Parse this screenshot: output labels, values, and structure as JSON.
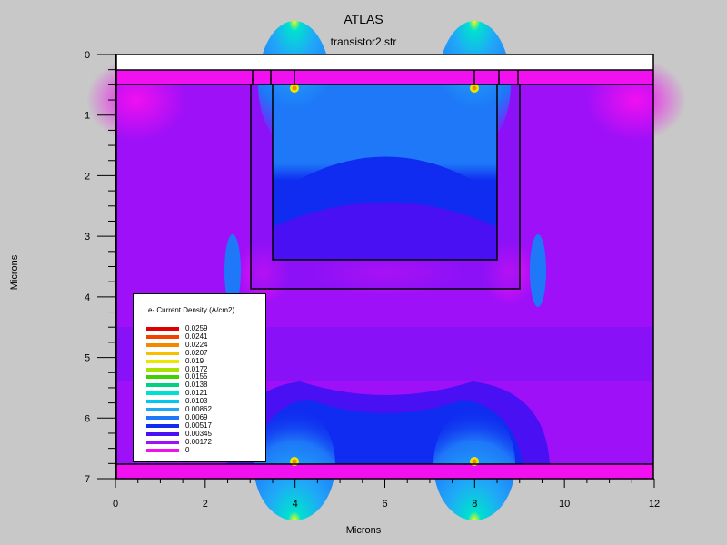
{
  "header": {
    "title": "ATLAS",
    "subtitle": "transistor2.str"
  },
  "chart_data": {
    "type": "heatmap",
    "title": "ATLAS",
    "subtitle": "transistor2.str",
    "xlabel": "Microns",
    "ylabel": "Microns",
    "xlim": [
      0,
      12
    ],
    "ylim": [
      7,
      0
    ],
    "x_ticks": [
      "0",
      "2",
      "4",
      "6",
      "8",
      "10",
      "12"
    ],
    "y_ticks": [
      "0",
      "1",
      "2",
      "3",
      "4",
      "5",
      "6",
      "7"
    ],
    "x_tick_values": [
      0,
      2,
      4,
      6,
      8,
      10,
      12
    ],
    "y_tick_values": [
      0,
      1,
      2,
      3,
      4,
      5,
      6,
      7
    ],
    "legend": {
      "title": "e- Current Density (A/cm2)",
      "entries": [
        {
          "label": "0.0259",
          "color": "#dd0000"
        },
        {
          "label": "0.0241",
          "color": "#ee4400"
        },
        {
          "label": "0.0224",
          "color": "#f28a00"
        },
        {
          "label": "0.0207",
          "color": "#f6c000"
        },
        {
          "label": "0.019",
          "color": "#e8e800"
        },
        {
          "label": "0.0172",
          "color": "#a8e000"
        },
        {
          "label": "0.0155",
          "color": "#3ed000"
        },
        {
          "label": "0.0138",
          "color": "#00d080"
        },
        {
          "label": "0.0121",
          "color": "#00e0d0"
        },
        {
          "label": "0.0103",
          "color": "#00c8f0"
        },
        {
          "label": "0.00862",
          "color": "#20a8f8"
        },
        {
          "label": "0.0069",
          "color": "#1e78f8"
        },
        {
          "label": "0.00517",
          "color": "#0f2cf0"
        },
        {
          "label": "0.00345",
          "color": "#4a10f4"
        },
        {
          "label": "0.00172",
          "color": "#9e10f8"
        },
        {
          "label": "0",
          "color": "#f010f0"
        }
      ]
    }
  }
}
